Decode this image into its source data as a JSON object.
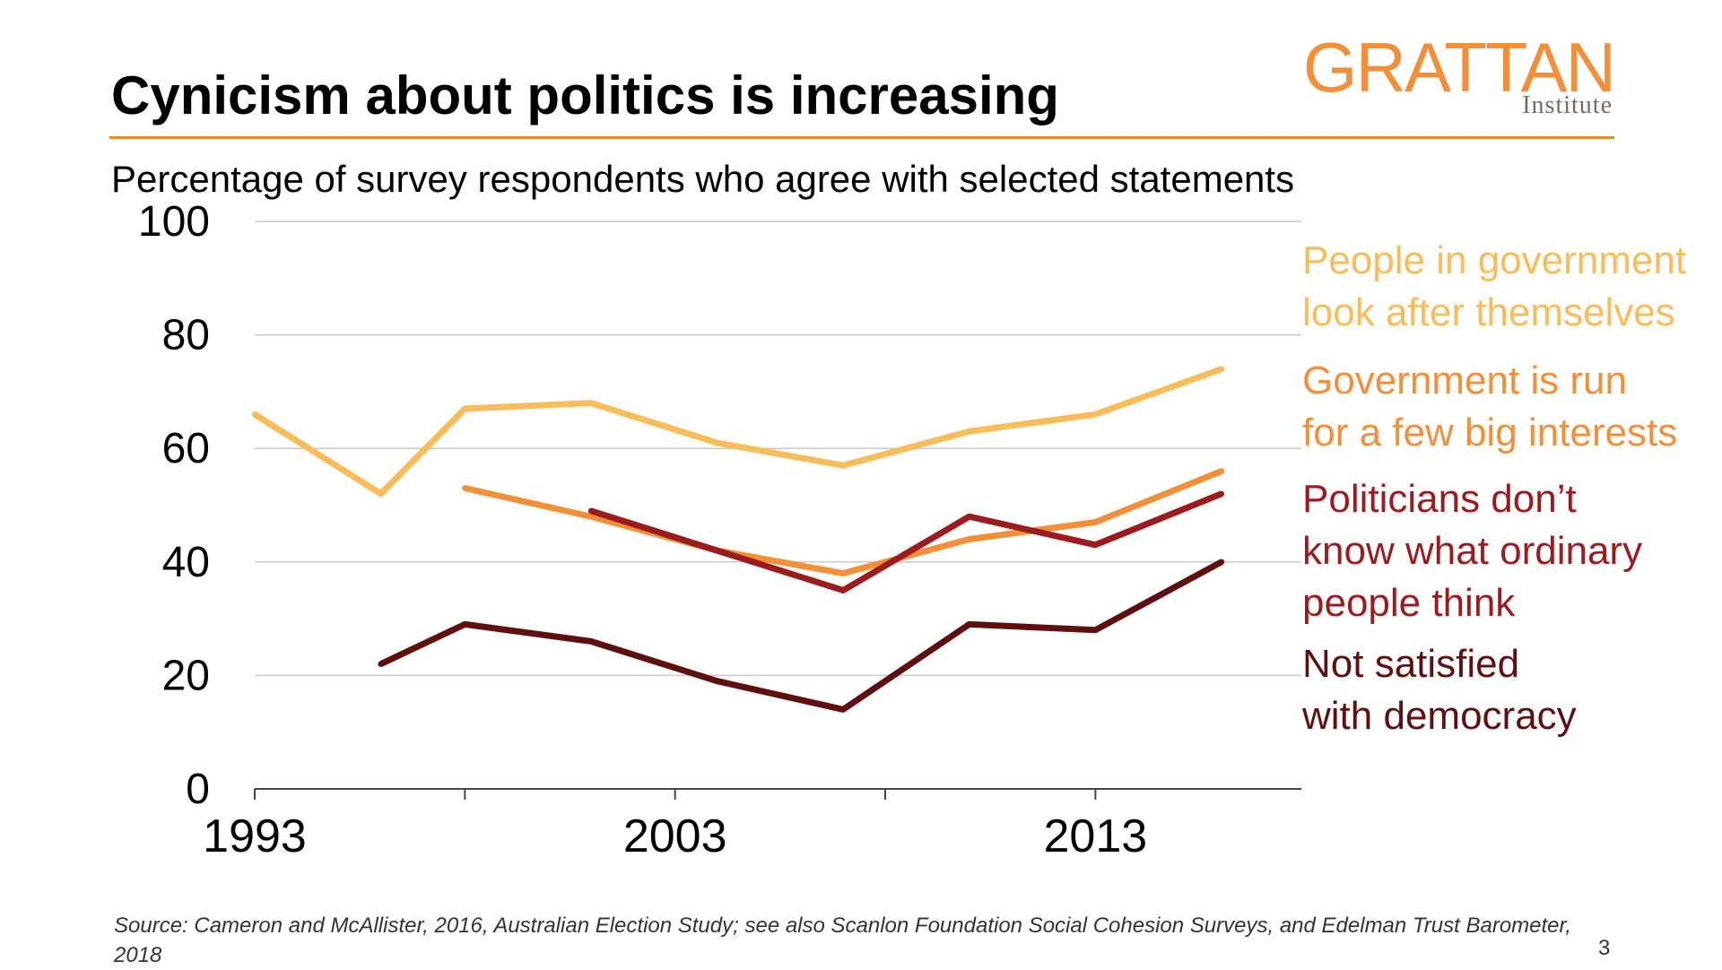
{
  "title": "Cynicism about politics is increasing",
  "subtitle": "Percentage of survey respondents who agree with selected statements",
  "logo": {
    "main": "GRATTAN",
    "sub": "Institute"
  },
  "source": "Source: Cameron  and McAllister, 2016, Australian Election Study; see also Scanlon Foundation  Social Cohesion  Surveys, and Edelman Trust Barometer, 2018",
  "page_number": "3",
  "colors": {
    "accent": "#e8892b",
    "series1": "#f7bd5b",
    "series2": "#f0903a",
    "series3": "#9a1c1f",
    "series4": "#5e1010"
  },
  "chart_data": {
    "type": "line",
    "title": "Cynicism about politics is increasing",
    "subtitle": "Percentage of survey respondents who agree with selected statements",
    "xlabel": "",
    "ylabel": "",
    "xlim": [
      1993,
      2017.9
    ],
    "ylim": [
      0,
      100
    ],
    "yticks": [
      0,
      20,
      40,
      60,
      80,
      100
    ],
    "xticks": [
      1993,
      1998,
      2003,
      2008,
      2013
    ],
    "xtick_labels": [
      "1993",
      "",
      "2003",
      "",
      "2013"
    ],
    "grid": true,
    "series": [
      {
        "name": "People in government look after themselves",
        "label_lines": [
          "People in government",
          "look after themselves"
        ],
        "color": "#f7bd5b",
        "x": [
          1993,
          1996,
          1998,
          2001,
          2004,
          2007,
          2010,
          2013,
          2016
        ],
        "y": [
          66,
          52,
          67,
          68,
          61,
          57,
          63,
          66,
          74
        ]
      },
      {
        "name": "Government is run for a few big interests",
        "label_lines": [
          "Government is run",
          "for a few big interests"
        ],
        "color": "#f0903a",
        "x": [
          1998,
          2001,
          2004,
          2007,
          2010,
          2013,
          2016
        ],
        "y": [
          53,
          48,
          42,
          38,
          44,
          47,
          56
        ]
      },
      {
        "name": "Politicians don't know what ordinary people think",
        "label_lines": [
          "Politicians don’t",
          "know what ordinary",
          "people think"
        ],
        "color": "#9a1c1f",
        "x": [
          2001,
          2004,
          2007,
          2010,
          2013,
          2016
        ],
        "y": [
          49,
          42,
          35,
          48,
          43,
          52
        ]
      },
      {
        "name": "Not satisfied with democracy",
        "label_lines": [
          "Not satisfied",
          "with democracy"
        ],
        "color": "#5e1010",
        "x": [
          1996,
          1998,
          2001,
          2004,
          2007,
          2010,
          2013,
          2016
        ],
        "y": [
          22,
          29,
          26,
          19,
          14,
          29,
          28,
          40
        ]
      }
    ]
  }
}
